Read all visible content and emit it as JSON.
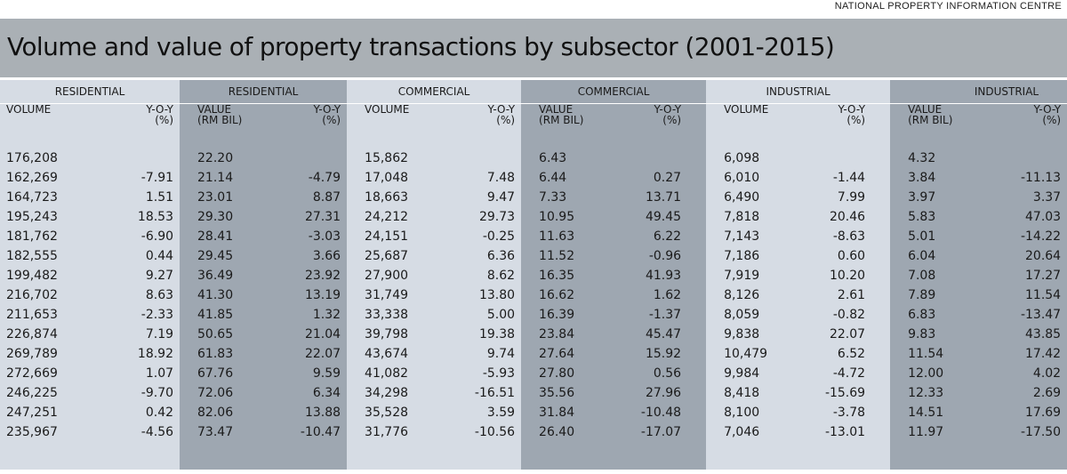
{
  "source": "NATIONAL PROPERTY INFORMATION CENTRE",
  "title": "Volume and value of property transactions by subsector (2001-2015)",
  "sections": [
    "RESIDENTIAL",
    "RESIDENTIAL",
    "COMMERCIAL",
    "COMMERCIAL",
    "INDUSTRIAL",
    "INDUSTRIAL"
  ],
  "subheaders": {
    "volume": "VOLUME",
    "yoy": "Y-O-Y",
    "yoy_unit": "(%)",
    "value": "VALUE",
    "value_unit": "(RM BIL)"
  },
  "colors": {
    "title_band": "#aab0b5",
    "light_column": "#d6dce4",
    "dark_column": "#9ea7b1"
  },
  "rows": [
    [
      "176,208",
      "",
      "22.20",
      "",
      "15,862",
      "",
      "6.43",
      "",
      "6,098",
      "",
      "4.32",
      ""
    ],
    [
      "162,269",
      "-7.91",
      "21.14",
      "-4.79",
      "17,048",
      "7.48",
      "6.44",
      "0.27",
      "6,010",
      "-1.44",
      "3.84",
      "-11.13"
    ],
    [
      "164,723",
      "1.51",
      "23.01",
      "8.87",
      "18,663",
      "9.47",
      "7.33",
      "13.71",
      "6,490",
      "7.99",
      "3.97",
      "3.37"
    ],
    [
      "195,243",
      "18.53",
      "29.30",
      "27.31",
      "24,212",
      "29.73",
      "10.95",
      "49.45",
      "7,818",
      "20.46",
      "5.83",
      "47.03"
    ],
    [
      "181,762",
      "-6.90",
      "28.41",
      "-3.03",
      "24,151",
      "-0.25",
      "11.63",
      "6.22",
      "7,143",
      "-8.63",
      "5.01",
      "-14.22"
    ],
    [
      "182,555",
      "0.44",
      "29.45",
      "3.66",
      "25,687",
      "6.36",
      "11.52",
      "-0.96",
      "7,186",
      "0.60",
      "6.04",
      "20.64"
    ],
    [
      "199,482",
      "9.27",
      "36.49",
      "23.92",
      "27,900",
      "8.62",
      "16.35",
      "41.93",
      "7,919",
      "10.20",
      "7.08",
      "17.27"
    ],
    [
      "216,702",
      "8.63",
      "41.30",
      "13.19",
      "31,749",
      "13.80",
      "16.62",
      "1.62",
      "8,126",
      "2.61",
      "7.89",
      "11.54"
    ],
    [
      "211,653",
      "-2.33",
      "41.85",
      "1.32",
      "33,338",
      "5.00",
      "16.39",
      "-1.37",
      "8,059",
      "-0.82",
      "6.83",
      "-13.47"
    ],
    [
      "226,874",
      "7.19",
      "50.65",
      "21.04",
      "39,798",
      "19.38",
      "23.84",
      "45.47",
      "9,838",
      "22.07",
      "9.83",
      "43.85"
    ],
    [
      "269,789",
      "18.92",
      "61.83",
      "22.07",
      "43,674",
      "9.74",
      "27.64",
      "15.92",
      "10,479",
      "6.52",
      "11.54",
      "17.42"
    ],
    [
      "272,669",
      "1.07",
      "67.76",
      "9.59",
      "41,082",
      "-5.93",
      "27.80",
      "0.56",
      "9,984",
      "-4.72",
      "12.00",
      "4.02"
    ],
    [
      "246,225",
      "-9.70",
      "72.06",
      "6.34",
      "34,298",
      "-16.51",
      "35.56",
      "27.96",
      "8,418",
      "-15.69",
      "12.33",
      "2.69"
    ],
    [
      "247,251",
      "0.42",
      "82.06",
      "13.88",
      "35,528",
      "3.59",
      "31.84",
      "-10.48",
      "8,100",
      "-3.78",
      "14.51",
      "17.69"
    ],
    [
      "235,967",
      "-4.56",
      "73.47",
      "-10.47",
      "31,776",
      "-10.56",
      "26.40",
      "-17.07",
      "7,046",
      "-13.01",
      "11.97",
      "-17.50"
    ]
  ]
}
